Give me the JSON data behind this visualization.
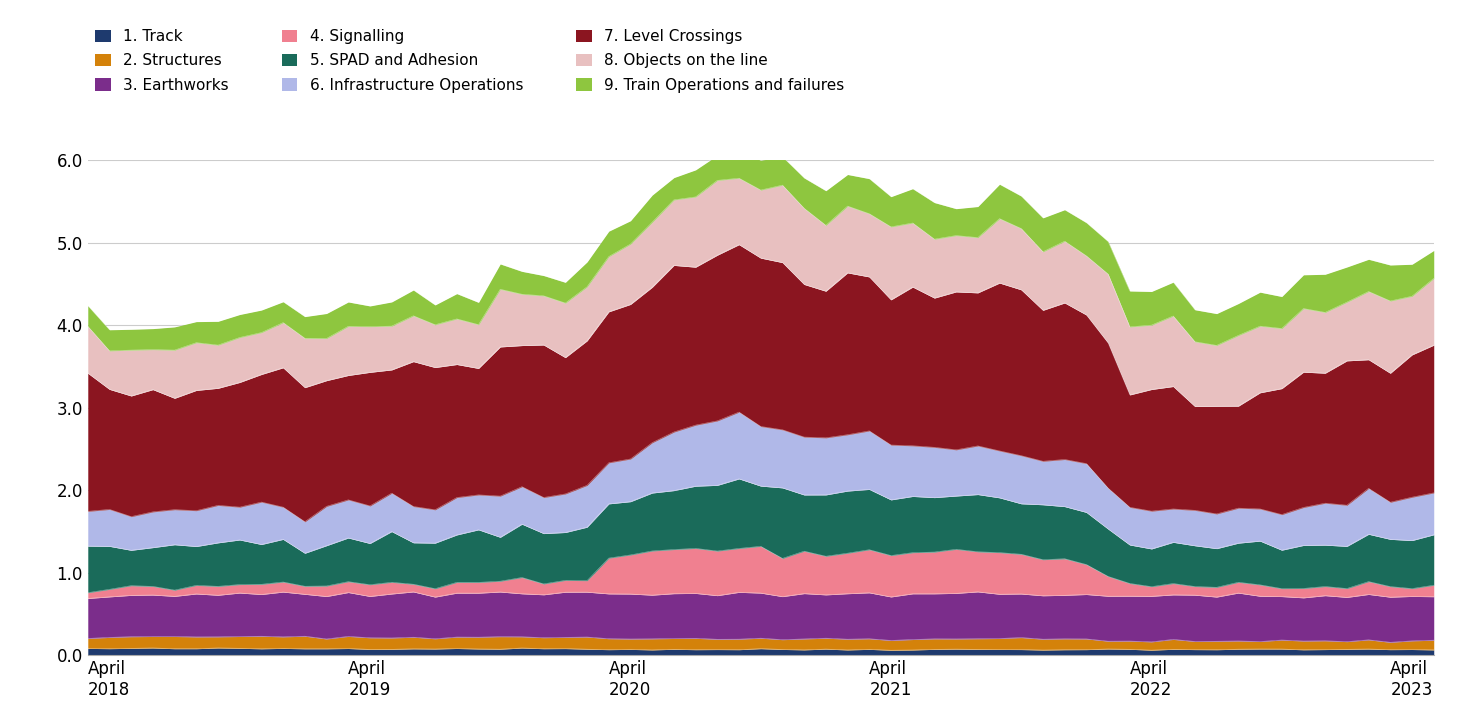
{
  "series_labels": [
    "1. Track",
    "2. Structures",
    "3. Earthworks",
    "4. Signalling",
    "5. SPAD and Adhesion",
    "6. Infrastructure Operations",
    "7. Level Crossings",
    "8. Objects on the line",
    "9. Train Operations and failures"
  ],
  "colors": [
    "#1e3a6e",
    "#d4820a",
    "#7b2d8b",
    "#f08090",
    "#1a6b5a",
    "#b0b8e8",
    "#8b1520",
    "#e8c0c0",
    "#8ec63f"
  ],
  "ylim": [
    0,
    6.0
  ],
  "yticks": [
    0.0,
    1.0,
    2.0,
    3.0,
    4.0,
    5.0,
    6.0
  ],
  "x_tick_labels": [
    "April\n2018",
    "April\n2019",
    "April\n2020",
    "April\n2021",
    "April\n2022",
    "April\n2023"
  ],
  "x_tick_positions": [
    0,
    12,
    24,
    36,
    48,
    60
  ],
  "data": {
    "track": [
      0.08,
      0.08,
      0.08,
      0.08,
      0.08,
      0.08,
      0.08,
      0.08,
      0.08,
      0.08,
      0.08,
      0.08,
      0.08,
      0.08,
      0.08,
      0.08,
      0.08,
      0.08,
      0.08,
      0.08,
      0.08,
      0.08,
      0.08,
      0.08,
      0.07,
      0.07,
      0.07,
      0.07,
      0.07,
      0.07,
      0.07,
      0.07,
      0.07,
      0.07,
      0.07,
      0.07,
      0.07,
      0.07,
      0.07,
      0.07,
      0.07,
      0.07,
      0.07,
      0.07,
      0.07,
      0.07,
      0.07,
      0.07,
      0.07,
      0.07,
      0.07,
      0.07,
      0.07,
      0.07,
      0.07,
      0.07,
      0.07,
      0.07,
      0.07,
      0.07,
      0.07,
      0.07,
      0.07
    ],
    "structures": [
      0.13,
      0.13,
      0.13,
      0.14,
      0.14,
      0.14,
      0.14,
      0.14,
      0.14,
      0.14,
      0.14,
      0.14,
      0.14,
      0.14,
      0.14,
      0.14,
      0.14,
      0.14,
      0.14,
      0.14,
      0.14,
      0.14,
      0.14,
      0.14,
      0.13,
      0.13,
      0.13,
      0.13,
      0.13,
      0.13,
      0.13,
      0.13,
      0.13,
      0.13,
      0.13,
      0.13,
      0.13,
      0.13,
      0.13,
      0.13,
      0.13,
      0.13,
      0.13,
      0.13,
      0.13,
      0.13,
      0.13,
      0.11,
      0.1,
      0.1,
      0.1,
      0.1,
      0.1,
      0.1,
      0.1,
      0.1,
      0.1,
      0.1,
      0.1,
      0.1,
      0.1,
      0.1,
      0.1
    ],
    "earthworks": [
      0.5,
      0.5,
      0.5,
      0.51,
      0.51,
      0.52,
      0.52,
      0.52,
      0.52,
      0.52,
      0.52,
      0.52,
      0.52,
      0.52,
      0.53,
      0.53,
      0.53,
      0.53,
      0.53,
      0.53,
      0.54,
      0.54,
      0.54,
      0.54,
      0.54,
      0.54,
      0.54,
      0.54,
      0.54,
      0.54,
      0.54,
      0.54,
      0.54,
      0.54,
      0.54,
      0.54,
      0.54,
      0.54,
      0.54,
      0.54,
      0.54,
      0.54,
      0.54,
      0.54,
      0.54,
      0.54,
      0.54,
      0.54,
      0.54,
      0.54,
      0.54,
      0.54,
      0.54,
      0.54,
      0.54,
      0.54,
      0.54,
      0.54,
      0.54,
      0.54,
      0.54,
      0.54,
      0.54
    ],
    "signalling": [
      0.1,
      0.1,
      0.1,
      0.1,
      0.1,
      0.1,
      0.1,
      0.12,
      0.12,
      0.12,
      0.12,
      0.12,
      0.12,
      0.12,
      0.12,
      0.12,
      0.12,
      0.12,
      0.12,
      0.12,
      0.12,
      0.12,
      0.12,
      0.12,
      0.42,
      0.48,
      0.52,
      0.55,
      0.55,
      0.55,
      0.53,
      0.52,
      0.5,
      0.5,
      0.5,
      0.5,
      0.5,
      0.5,
      0.52,
      0.52,
      0.52,
      0.5,
      0.5,
      0.48,
      0.45,
      0.4,
      0.35,
      0.28,
      0.15,
      0.13,
      0.12,
      0.12,
      0.12,
      0.12,
      0.12,
      0.12,
      0.12,
      0.12,
      0.12,
      0.12,
      0.12,
      0.12,
      0.12
    ],
    "spad": [
      0.48,
      0.48,
      0.49,
      0.49,
      0.5,
      0.5,
      0.51,
      0.51,
      0.52,
      0.52,
      0.53,
      0.53,
      0.54,
      0.55,
      0.55,
      0.56,
      0.57,
      0.57,
      0.58,
      0.59,
      0.6,
      0.61,
      0.62,
      0.63,
      0.65,
      0.67,
      0.7,
      0.73,
      0.75,
      0.77,
      0.78,
      0.78,
      0.77,
      0.76,
      0.75,
      0.73,
      0.72,
      0.7,
      0.69,
      0.68,
      0.67,
      0.66,
      0.65,
      0.64,
      0.63,
      0.62,
      0.6,
      0.55,
      0.5,
      0.48,
      0.47,
      0.47,
      0.47,
      0.47,
      0.48,
      0.49,
      0.5,
      0.51,
      0.52,
      0.53,
      0.54,
      0.55,
      0.56
    ],
    "infra_ops": [
      0.42,
      0.42,
      0.42,
      0.42,
      0.43,
      0.43,
      0.43,
      0.43,
      0.43,
      0.43,
      0.43,
      0.43,
      0.43,
      0.43,
      0.44,
      0.44,
      0.44,
      0.45,
      0.45,
      0.46,
      0.46,
      0.47,
      0.48,
      0.49,
      0.52,
      0.55,
      0.6,
      0.7,
      0.76,
      0.8,
      0.8,
      0.78,
      0.76,
      0.73,
      0.7,
      0.67,
      0.65,
      0.63,
      0.62,
      0.61,
      0.6,
      0.59,
      0.58,
      0.57,
      0.56,
      0.55,
      0.53,
      0.5,
      0.44,
      0.43,
      0.42,
      0.42,
      0.42,
      0.42,
      0.42,
      0.43,
      0.44,
      0.45,
      0.46,
      0.47,
      0.48,
      0.49,
      0.5
    ],
    "level_crossings": [
      1.5,
      1.52,
      1.53,
      1.53,
      1.52,
      1.5,
      1.48,
      1.5,
      1.52,
      1.54,
      1.55,
      1.57,
      1.58,
      1.58,
      1.6,
      1.61,
      1.63,
      1.65,
      1.67,
      1.7,
      1.72,
      1.75,
      1.78,
      1.8,
      1.83,
      1.87,
      1.92,
      1.97,
      2.0,
      2.02,
      2.02,
      2.0,
      1.97,
      1.94,
      1.9,
      1.86,
      1.84,
      1.82,
      1.8,
      1.8,
      1.82,
      1.85,
      1.87,
      1.87,
      1.85,
      1.82,
      1.75,
      1.65,
      1.44,
      1.42,
      1.4,
      1.4,
      1.4,
      1.4,
      1.43,
      1.47,
      1.52,
      1.57,
      1.62,
      1.67,
      1.7,
      1.73,
      1.76
    ],
    "objects": [
      0.57,
      0.57,
      0.56,
      0.55,
      0.55,
      0.56,
      0.57,
      0.57,
      0.56,
      0.55,
      0.55,
      0.56,
      0.57,
      0.58,
      0.57,
      0.56,
      0.57,
      0.58,
      0.59,
      0.6,
      0.62,
      0.63,
      0.65,
      0.66,
      0.68,
      0.7,
      0.75,
      0.82,
      0.88,
      0.92,
      0.92,
      0.9,
      0.87,
      0.84,
      0.81,
      0.78,
      0.75,
      0.73,
      0.72,
      0.72,
      0.73,
      0.75,
      0.77,
      0.78,
      0.78,
      0.78,
      0.77,
      0.75,
      0.78,
      0.78,
      0.78,
      0.78,
      0.78,
      0.78,
      0.78,
      0.78,
      0.78,
      0.78,
      0.78,
      0.78,
      0.78,
      0.78,
      0.78
    ],
    "train_ops": [
      0.27,
      0.27,
      0.27,
      0.28,
      0.28,
      0.28,
      0.28,
      0.28,
      0.28,
      0.28,
      0.28,
      0.28,
      0.28,
      0.28,
      0.29,
      0.29,
      0.29,
      0.29,
      0.29,
      0.29,
      0.3,
      0.3,
      0.3,
      0.3,
      0.3,
      0.31,
      0.31,
      0.32,
      0.33,
      0.34,
      0.35,
      0.36,
      0.37,
      0.38,
      0.39,
      0.4,
      0.4,
      0.4,
      0.4,
      0.4,
      0.4,
      0.4,
      0.4,
      0.4,
      0.4,
      0.4,
      0.4,
      0.4,
      0.4,
      0.4,
      0.4,
      0.4,
      0.4,
      0.4,
      0.4,
      0.4,
      0.4,
      0.4,
      0.4,
      0.4,
      0.4,
      0.4,
      0.4
    ]
  }
}
